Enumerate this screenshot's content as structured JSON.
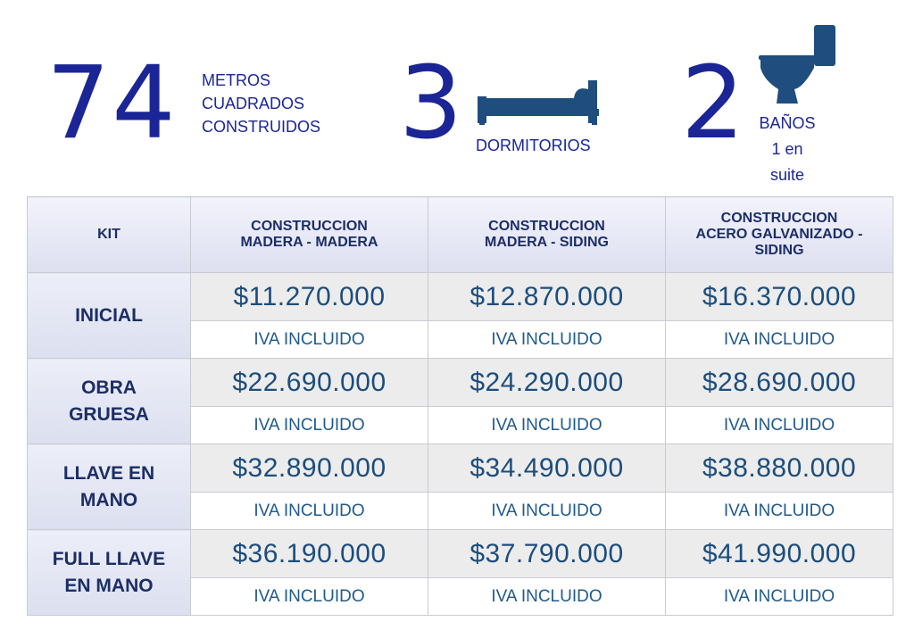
{
  "summary": {
    "area_value": "74",
    "area_label": [
      "METROS",
      "CUADRADOS",
      "CONSTRUIDOS"
    ],
    "bedrooms_value": "3",
    "bedrooms_label": "DORMITORIOS",
    "bathrooms_value": "2",
    "bathrooms_label": [
      "BAÑOS",
      "1 en",
      "suite"
    ]
  },
  "table": {
    "headers": [
      [
        "KIT"
      ],
      [
        "CONSTRUCCION",
        "MADERA - MADERA"
      ],
      [
        "CONSTRUCCION",
        "MADERA - SIDING"
      ],
      [
        "CONSTRUCCION",
        "ACERO GALVANIZADO -",
        "SIDING"
      ]
    ],
    "iva_label": "IVA INCLUIDO",
    "rows": [
      {
        "kit": [
          "INICIAL"
        ],
        "prices": [
          "$11.270.000",
          "$12.870.000",
          "$16.370.000"
        ]
      },
      {
        "kit": [
          "OBRA",
          "GRUESA"
        ],
        "prices": [
          "$22.690.000",
          "$24.290.000",
          "$28.690.000"
        ]
      },
      {
        "kit": [
          "LLAVE EN",
          "MANO"
        ],
        "prices": [
          "$32.890.000",
          "$34.490.000",
          "$38.880.000"
        ]
      },
      {
        "kit": [
          "FULL LLAVE",
          "EN MANO"
        ],
        "prices": [
          "$36.190.000",
          "$37.790.000",
          "$41.990.000"
        ]
      }
    ]
  },
  "colors": {
    "accent": "#1b2596",
    "header_text": "#1c2e66",
    "price_text": "#1c4d7d",
    "icon": "#1f4d7d"
  },
  "icons": {
    "bedrooms": "bed-icon",
    "bathrooms": "toilet-icon"
  }
}
